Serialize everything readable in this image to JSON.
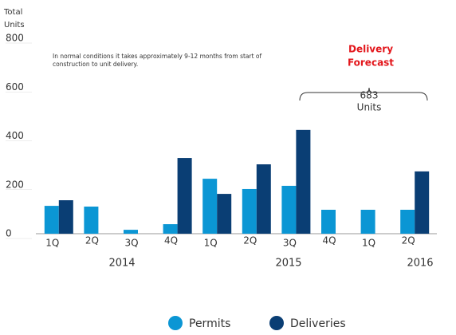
{
  "chart_data": {
    "type": "bar",
    "y_axis_label": [
      "Total",
      "Units"
    ],
    "categories": [
      "1Q",
      "2Q",
      "3Q",
      "4Q",
      "1Q",
      "2Q",
      "3Q",
      "4Q",
      "1Q",
      "2Q"
    ],
    "year_labels": [
      "2014",
      "2015",
      "2016"
    ],
    "series": [
      {
        "name": "Permits",
        "color": "#0b96d4",
        "values": [
          114,
          111,
          16,
          39,
          225,
          183,
          196,
          98,
          98,
          98
        ]
      },
      {
        "name": "Deliveries",
        "color": "#0a3e74",
        "values": [
          137,
          null,
          null,
          310,
          163,
          284,
          425,
          null,
          null,
          255
        ]
      }
    ],
    "ylim": [
      0,
      800
    ],
    "yticks": [
      0,
      200,
      400,
      600,
      800
    ],
    "note": [
      "In normal conditions it takes approximately 9-12   months from start of",
      "construction to unit delivery."
    ],
    "forecast_title": [
      "Delivery",
      "Forecast"
    ],
    "forecast_total": 683,
    "forecast_unit": "Units"
  }
}
